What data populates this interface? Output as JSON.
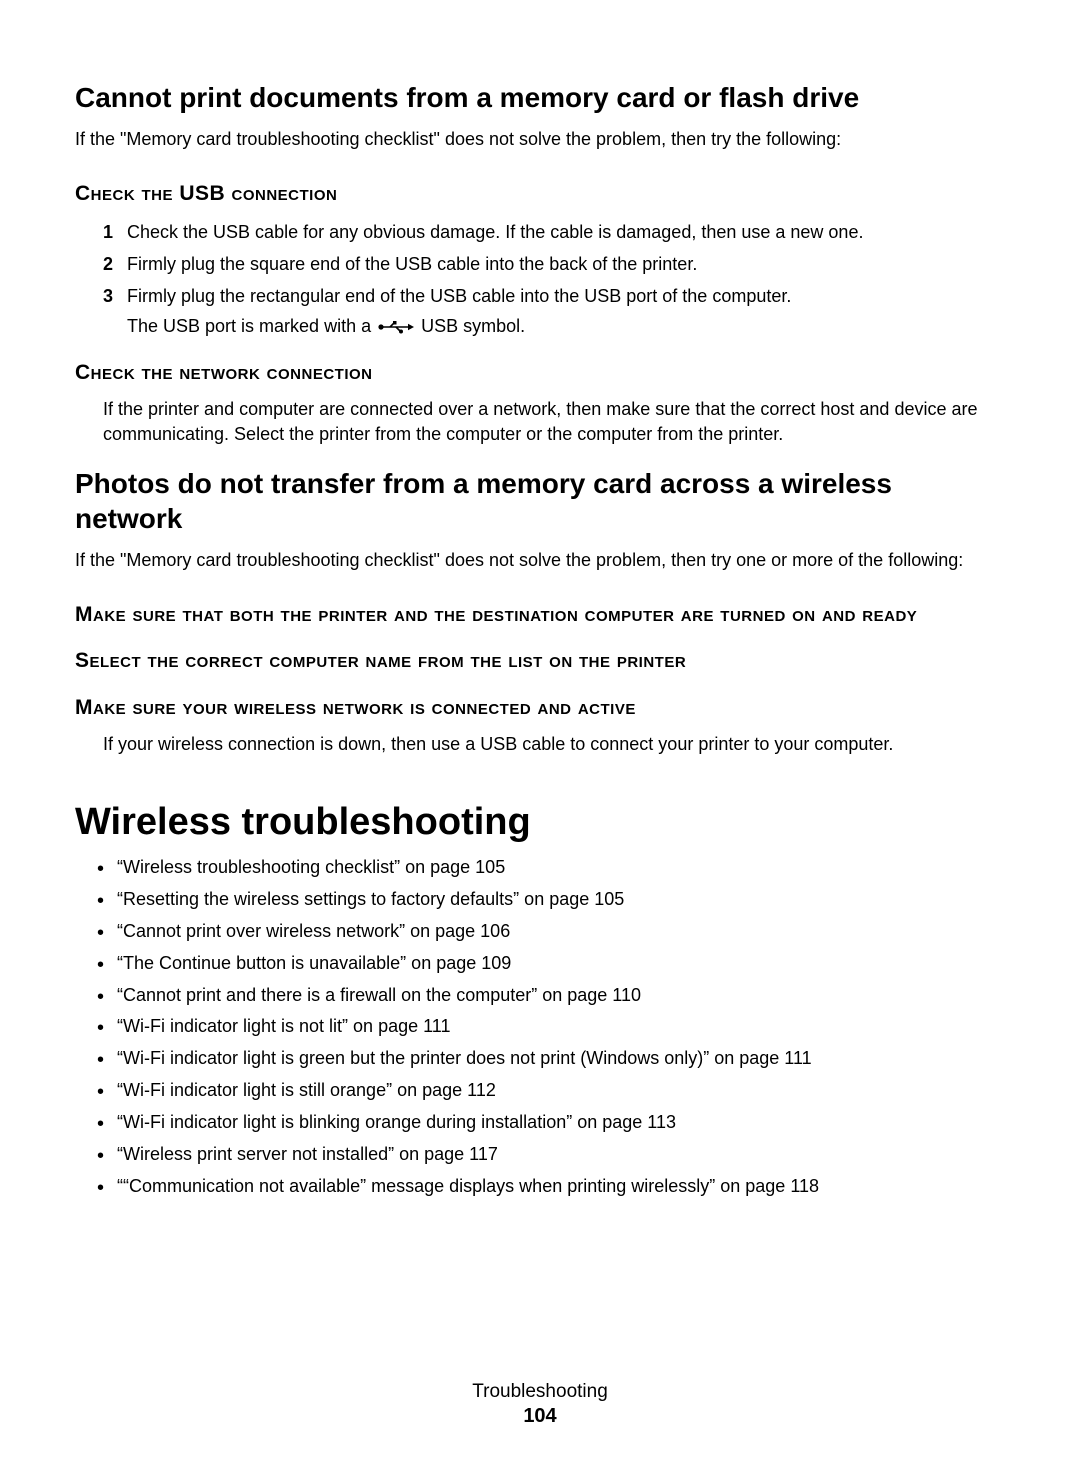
{
  "section1": {
    "title": "Cannot print documents from a memory card or flash drive",
    "intro": "If the \"Memory card troubleshooting checklist\" does not solve the problem, then try the following:",
    "usb_heading": "Check the USB connection",
    "steps": [
      "Check the USB cable for any obvious damage. If the cable is damaged, then use a new one.",
      "Firmly plug the square end of the USB cable into the back of the printer.",
      "Firmly plug the rectangular end of the USB cable into the USB port of the computer."
    ],
    "usb_note_prefix": "The USB port is marked with a ",
    "usb_note_suffix": " USB symbol.",
    "net_heading": "Check the network connection",
    "net_body": "If the printer and computer are connected over a network, then make sure that the correct host and device are communicating. Select the printer from the computer or the computer from the printer."
  },
  "section2": {
    "title": "Photos do not transfer from a memory card across a wireless network",
    "intro": "If the \"Memory card troubleshooting checklist\" does not solve the problem, then try one or more of the following:",
    "sc1": "Make sure that both the printer and the destination computer are turned on and ready",
    "sc2": "Select the correct computer name from the list on the printer",
    "sc3": "Make sure your wireless network is connected and active",
    "sc3_body": "If your wireless connection is down, then use a USB cable to connect your printer to your computer."
  },
  "section3": {
    "title": "Wireless troubleshooting",
    "items": [
      "“Wireless troubleshooting checklist” on page 105",
      "“Resetting the wireless settings to factory defaults” on page 105",
      "“Cannot print over wireless network” on page 106",
      "“The Continue button is unavailable” on page 109",
      "“Cannot print and there is a firewall on the computer” on page 110",
      "“Wi-Fi indicator light is not lit” on page 111",
      "“Wi-Fi indicator light is green but the printer does not print (Windows only)” on page 111",
      "“Wi-Fi indicator light is still orange” on page 112",
      "“Wi-Fi indicator light is blinking orange during installation” on page 113",
      "“Wireless print server not installed” on page 117",
      "““Communication not available” message displays when printing wirelessly” on page 118"
    ]
  },
  "footer": {
    "section": "Troubleshooting",
    "page": "104"
  }
}
